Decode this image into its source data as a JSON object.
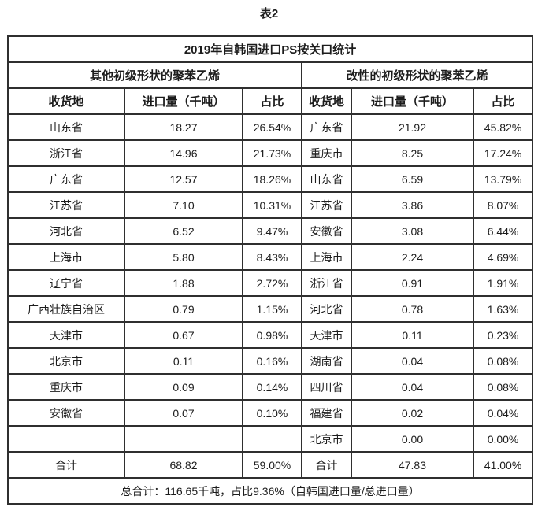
{
  "page": {
    "caption": "表2"
  },
  "table": {
    "title": "2019年自韩国进口PS按关口统计",
    "sections": [
      {
        "label": "其他初级形状的聚苯乙烯"
      },
      {
        "label": "改性的初级形状的聚苯乙烯"
      }
    ],
    "columns": [
      "收货地",
      "进口量（千吨）",
      "占比",
      "收货地",
      "进口量（千吨）",
      "占比"
    ],
    "rows": [
      [
        "山东省",
        "18.27",
        "26.54%",
        "广东省",
        "21.92",
        "45.82%"
      ],
      [
        "浙江省",
        "14.96",
        "21.73%",
        "重庆市",
        "8.25",
        "17.24%"
      ],
      [
        "广东省",
        "12.57",
        "18.26%",
        "山东省",
        "6.59",
        "13.79%"
      ],
      [
        "江苏省",
        "7.10",
        "10.31%",
        "江苏省",
        "3.86",
        "8.07%"
      ],
      [
        "河北省",
        "6.52",
        "9.47%",
        "安徽省",
        "3.08",
        "6.44%"
      ],
      [
        "上海市",
        "5.80",
        "8.43%",
        "上海市",
        "2.24",
        "4.69%"
      ],
      [
        "辽宁省",
        "1.88",
        "2.72%",
        "浙江省",
        "0.91",
        "1.91%"
      ],
      [
        "广西壮族自治区",
        "0.79",
        "1.15%",
        "河北省",
        "0.78",
        "1.63%"
      ],
      [
        "天津市",
        "0.67",
        "0.98%",
        "天津市",
        "0.11",
        "0.23%"
      ],
      [
        "北京市",
        "0.11",
        "0.16%",
        "湖南省",
        "0.04",
        "0.08%"
      ],
      [
        "重庆市",
        "0.09",
        "0.14%",
        "四川省",
        "0.04",
        "0.08%"
      ],
      [
        "安徽省",
        "0.07",
        "0.10%",
        "福建省",
        "0.02",
        "0.04%"
      ],
      [
        "",
        "",
        "",
        "北京市",
        "0.00",
        "0.00%"
      ]
    ],
    "total_row": [
      "合计",
      "68.82",
      "59.00%",
      "合计",
      "47.83",
      "41.00%"
    ],
    "footer": "总合计：116.65千吨，占比9.36%（自韩国进口量/总进口量）"
  },
  "colors": {
    "border": "#2f2f2f",
    "text": "#1c1c1c",
    "background": "#ffffff"
  }
}
